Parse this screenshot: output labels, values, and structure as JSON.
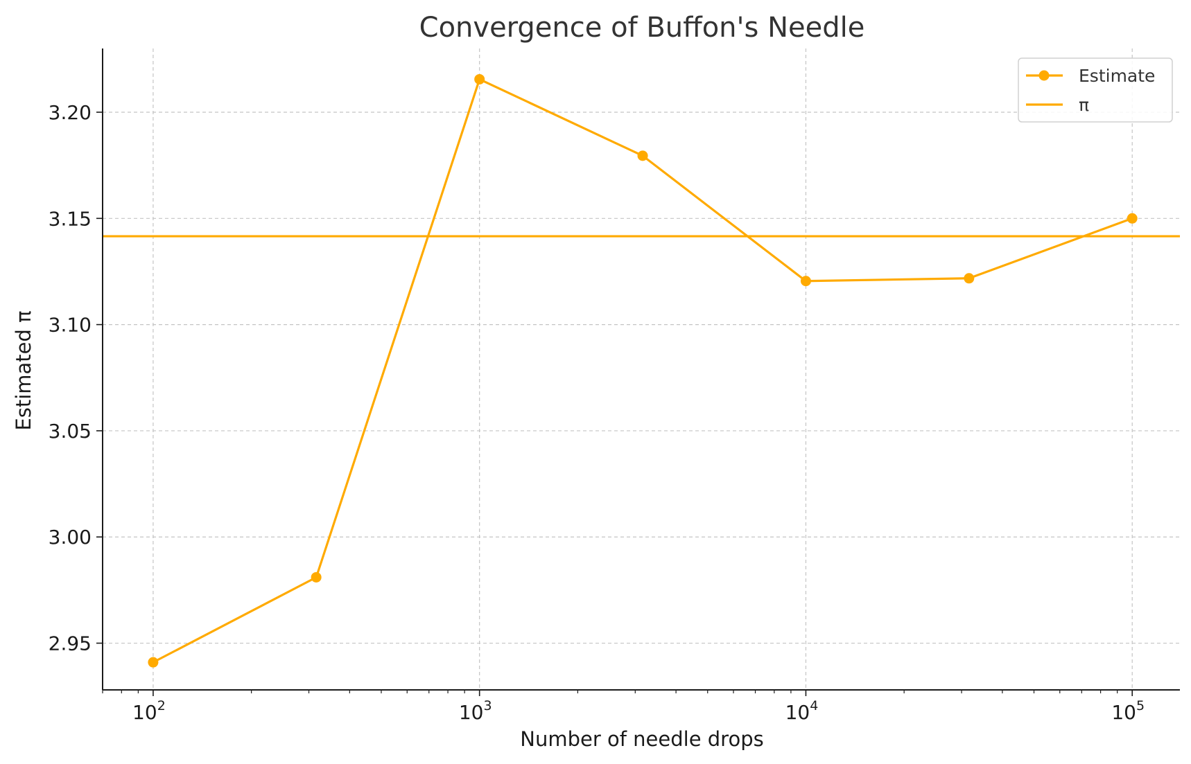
{
  "chart_data": {
    "type": "line",
    "title": "Convergence of Buffon's Needle",
    "xlabel": "Number of needle drops",
    "ylabel": "Estimated π",
    "x_scale": "log",
    "xlim": [
      70,
      140000
    ],
    "ylim": [
      2.928,
      3.23
    ],
    "grid": true,
    "legend_position": "top-right",
    "x_ticks": [
      {
        "value": 100,
        "base": "10",
        "exp": "2"
      },
      {
        "value": 1000,
        "base": "10",
        "exp": "3"
      },
      {
        "value": 10000,
        "base": "10",
        "exp": "4"
      },
      {
        "value": 100000,
        "base": "10",
        "exp": "5"
      }
    ],
    "y_ticks": [
      {
        "value": 2.95,
        "label": "2.95"
      },
      {
        "value": 3.0,
        "label": "3.00"
      },
      {
        "value": 3.05,
        "label": "3.05"
      },
      {
        "value": 3.1,
        "label": "3.10"
      },
      {
        "value": 3.15,
        "label": "3.15"
      },
      {
        "value": 3.2,
        "label": "3.20"
      }
    ],
    "series": [
      {
        "name": "Estimate",
        "color": "#ffaa00",
        "marker": "circle",
        "x": [
          100,
          316,
          1000,
          3162,
          10000,
          31623,
          100000
        ],
        "values": [
          2.941,
          2.981,
          3.2155,
          3.1795,
          3.1205,
          3.1218,
          3.15
        ]
      }
    ],
    "reference_lines": [
      {
        "name": "π",
        "value": 3.14159,
        "color": "#ffaa00"
      }
    ]
  }
}
